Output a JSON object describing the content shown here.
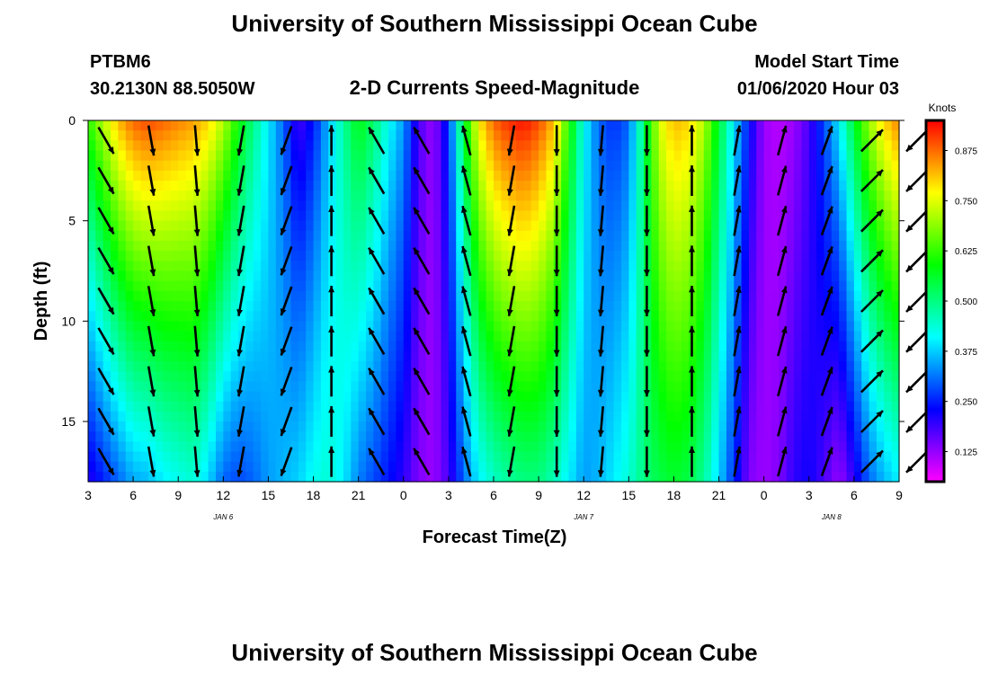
{
  "header": {
    "title_top": "University of Southern Mississippi Ocean Cube",
    "station_id": "PTBM6",
    "station_coords": "30.2130N 88.5050W",
    "chart_title": "2-D Currents Speed-Magnitude",
    "model_start_label": "Model Start Time",
    "model_start_value": "01/06/2020 Hour 03",
    "title_bottom": "University of Southern Mississippi Ocean Cube"
  },
  "colorbar": {
    "unit": "Knots",
    "ticks": [
      "0.875",
      "0.750",
      "0.625",
      "0.500",
      "0.375",
      "0.250",
      "0.125"
    ],
    "tick_values": [
      0.875,
      0.75,
      0.625,
      0.5,
      0.375,
      0.25,
      0.125
    ],
    "range": [
      0.05,
      0.95
    ]
  },
  "chart_data": {
    "type": "heatmap",
    "title": "2-D Currents Speed-Magnitude",
    "xlabel": "Forecast Time(Z)",
    "ylabel": "Depth (ft)",
    "x_tick_labels": [
      "3",
      "6",
      "9",
      "12",
      "15",
      "18",
      "21",
      "0",
      "3",
      "6",
      "9",
      "12",
      "15",
      "18",
      "21",
      "0",
      "3",
      "6",
      "9"
    ],
    "x_hours": [
      0,
      3,
      6,
      9,
      12,
      15,
      18,
      21,
      24,
      27,
      30,
      33,
      36,
      39,
      42,
      45,
      48,
      51,
      54
    ],
    "date_labels": [
      {
        "text": "JAN 6",
        "hour": 9
      },
      {
        "text": "JAN 7",
        "hour": 33
      },
      {
        "text": "JAN 8",
        "hour": 49.5
      }
    ],
    "y_ticks": [
      0,
      5,
      10,
      15
    ],
    "ylim": [
      0,
      18
    ],
    "color_scale": "rainbow magenta-to-red",
    "speed_profile_hours": [
      0,
      1,
      2,
      3,
      4,
      5,
      6,
      7,
      8,
      9,
      10,
      11,
      12,
      13,
      14,
      15,
      16,
      17,
      18,
      19,
      20,
      21,
      22,
      23,
      24,
      25,
      26,
      27,
      28,
      29,
      30,
      31,
      32,
      33,
      34,
      35,
      36,
      37,
      38,
      39,
      40,
      41,
      42,
      43,
      44,
      45,
      46,
      47,
      48,
      49,
      50,
      51,
      52,
      53,
      54
    ],
    "speed_surface_knots": [
      0.62,
      0.72,
      0.82,
      0.88,
      0.9,
      0.88,
      0.86,
      0.84,
      0.8,
      0.72,
      0.6,
      0.5,
      0.4,
      0.3,
      0.18,
      0.24,
      0.36,
      0.48,
      0.58,
      0.52,
      0.42,
      0.34,
      0.18,
      0.12,
      0.26,
      0.56,
      0.78,
      0.88,
      0.92,
      0.94,
      0.9,
      0.82,
      0.62,
      0.42,
      0.3,
      0.26,
      0.3,
      0.52,
      0.74,
      0.82,
      0.8,
      0.72,
      0.56,
      0.4,
      0.24,
      0.12,
      0.1,
      0.12,
      0.18,
      0.28,
      0.4,
      0.56,
      0.7,
      0.8,
      0.86
    ],
    "speed_bottom_knots": [
      0.2,
      0.25,
      0.3,
      0.35,
      0.36,
      0.4,
      0.42,
      0.44,
      0.38,
      0.3,
      0.28,
      0.3,
      0.34,
      0.36,
      0.38,
      0.42,
      0.44,
      0.4,
      0.32,
      0.28,
      0.24,
      0.2,
      0.14,
      0.12,
      0.18,
      0.3,
      0.4,
      0.45,
      0.48,
      0.5,
      0.5,
      0.46,
      0.4,
      0.34,
      0.36,
      0.4,
      0.44,
      0.5,
      0.54,
      0.56,
      0.54,
      0.48,
      0.38,
      0.26,
      0.14,
      0.12,
      0.14,
      0.2,
      0.22,
      0.18,
      0.12,
      0.2,
      0.3,
      0.36,
      0.4
    ],
    "vector_hours": [
      0,
      3,
      6,
      9,
      12,
      15,
      18,
      21,
      24,
      27,
      30,
      33,
      36,
      39,
      42,
      45,
      48,
      51,
      54
    ],
    "vector_depths_ft": [
      1,
      3,
      5,
      7,
      9,
      11,
      13,
      15,
      17
    ],
    "vector_direction_deg_from_north": [
      150,
      170,
      175,
      190,
      200,
      0,
      330,
      330,
      345,
      190,
      180,
      185,
      180,
      0,
      10,
      15,
      20,
      45,
      225
    ]
  }
}
